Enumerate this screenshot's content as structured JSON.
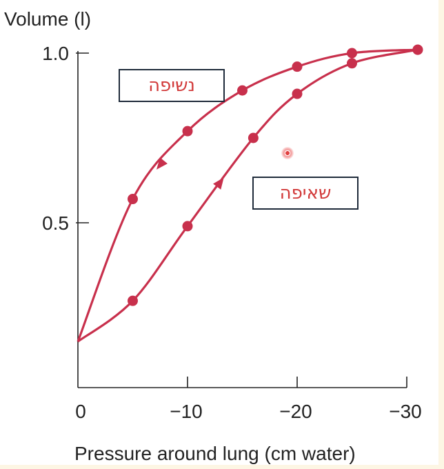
{
  "chart_data": {
    "type": "line",
    "title": "",
    "ylabel": "Volume (l)",
    "xlabel": "Pressure around lung (cm water)",
    "xlim": [
      0,
      -30
    ],
    "ylim": [
      0,
      1.0
    ],
    "x_ticks": [
      0,
      -10,
      -20,
      -30
    ],
    "x_tick_labels": [
      "0",
      "−10",
      "−20",
      "−30"
    ],
    "y_ticks": [
      0.5,
      1.0
    ],
    "y_tick_labels": [
      "0.5",
      "1.0"
    ],
    "series": [
      {
        "name": "נשיפה",
        "direction": "expiration (volume decreasing)",
        "color": "#c8304c",
        "points": [
          {
            "x": 0,
            "y": 0.15
          },
          {
            "x": -5,
            "y": 0.57
          },
          {
            "x": -10,
            "y": 0.77
          },
          {
            "x": -15,
            "y": 0.89
          },
          {
            "x": -20,
            "y": 0.96
          },
          {
            "x": -25,
            "y": 1.0
          },
          {
            "x": -31,
            "y": 1.01
          }
        ]
      },
      {
        "name": "שאיפה",
        "direction": "inspiration (volume increasing)",
        "color": "#c8304c",
        "points": [
          {
            "x": 0,
            "y": 0.15
          },
          {
            "x": -5,
            "y": 0.27
          },
          {
            "x": -10,
            "y": 0.49
          },
          {
            "x": -16,
            "y": 0.75
          },
          {
            "x": -20,
            "y": 0.88
          },
          {
            "x": -25,
            "y": 0.97
          },
          {
            "x": -31,
            "y": 1.01
          }
        ]
      }
    ],
    "annotations": [
      "נשיפה",
      "שאיפה"
    ]
  }
}
